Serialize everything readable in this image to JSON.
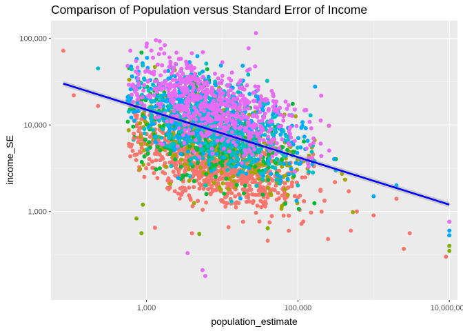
{
  "chart_data": {
    "type": "scatter",
    "title": "Comparison of Population versus Standard Error of Income",
    "xlabel": "population_estimate",
    "ylabel": "income_SE",
    "x_scale": "log10",
    "y_scale": "log10",
    "xlim": [
      55,
      12800000
    ],
    "ylim": [
      95,
      160000
    ],
    "x_ticks": [
      {
        "value": 1000,
        "label": "1,000"
      },
      {
        "value": 100000,
        "label": "100,000"
      },
      {
        "value": 10000000,
        "label": "10,000,000"
      }
    ],
    "y_ticks": [
      {
        "value": 1000,
        "label": "1,000"
      },
      {
        "value": 10000,
        "label": "10,000"
      },
      {
        "value": 100000,
        "label": "100,000"
      }
    ],
    "grid": true,
    "legend": "none",
    "series_colors": [
      "#F8766D",
      "#7CAE00",
      "#00BFC4",
      "#C77CFF",
      "#00A9FF",
      "#E76BF3",
      "#00BA38",
      "#A3A500"
    ],
    "trend_line": {
      "x": [
        80,
        10000000
      ],
      "y": [
        30000,
        1200
      ],
      "color": "#0000FF"
    },
    "series": [
      {
        "color": "#F8766D",
        "points": [
          [
            80,
            72000
          ],
          [
            110,
            22000
          ],
          [
            230,
            16500
          ],
          [
            680,
            7000
          ],
          [
            700,
            4500
          ],
          [
            1300,
            650
          ],
          [
            4000,
            560
          ],
          [
            40000,
            460
          ],
          [
            250000,
            480
          ],
          [
            500000,
            600
          ],
          [
            2500000,
            370
          ],
          [
            3000000,
            560
          ],
          [
            2000000,
            1400
          ],
          [
            1000000,
            900
          ],
          [
            600000,
            1000
          ],
          [
            9000000,
            300
          ]
        ]
      },
      {
        "color": "#7CAE00",
        "points": [
          [
            740,
            830
          ],
          [
            860,
            560
          ],
          [
            900,
            1200
          ],
          [
            5000,
            550
          ],
          [
            40000,
            640
          ],
          [
            10000000,
            400
          ],
          [
            10000000,
            350
          ]
        ]
      },
      {
        "color": "#00BFC4",
        "points": [
          [
            230,
            45000
          ],
          [
            6000,
            2000
          ],
          [
            100000,
            2000
          ]
        ]
      },
      {
        "color": "#00A9FF",
        "points": [
          [
            10000000,
            600
          ],
          [
            10000000,
            530
          ],
          [
            10000000,
            760
          ],
          [
            2000000,
            2000
          ],
          [
            1000000,
            1500
          ]
        ]
      },
      {
        "color": "#E76BF3",
        "points": [
          [
            28000,
            115000
          ],
          [
            6000,
            180
          ],
          [
            5500,
            210
          ],
          [
            3500,
            330
          ],
          [
            10000000,
            760
          ]
        ]
      }
    ],
    "cloud": {
      "x_range": [
        400,
        8000000
      ],
      "y_range": [
        160,
        110000
      ],
      "description_layers": [
        "#F8766D",
        "#7CAE00",
        "#00BA38",
        "#00A9FF",
        "#00BFC4",
        "#E76BF3"
      ]
    }
  }
}
